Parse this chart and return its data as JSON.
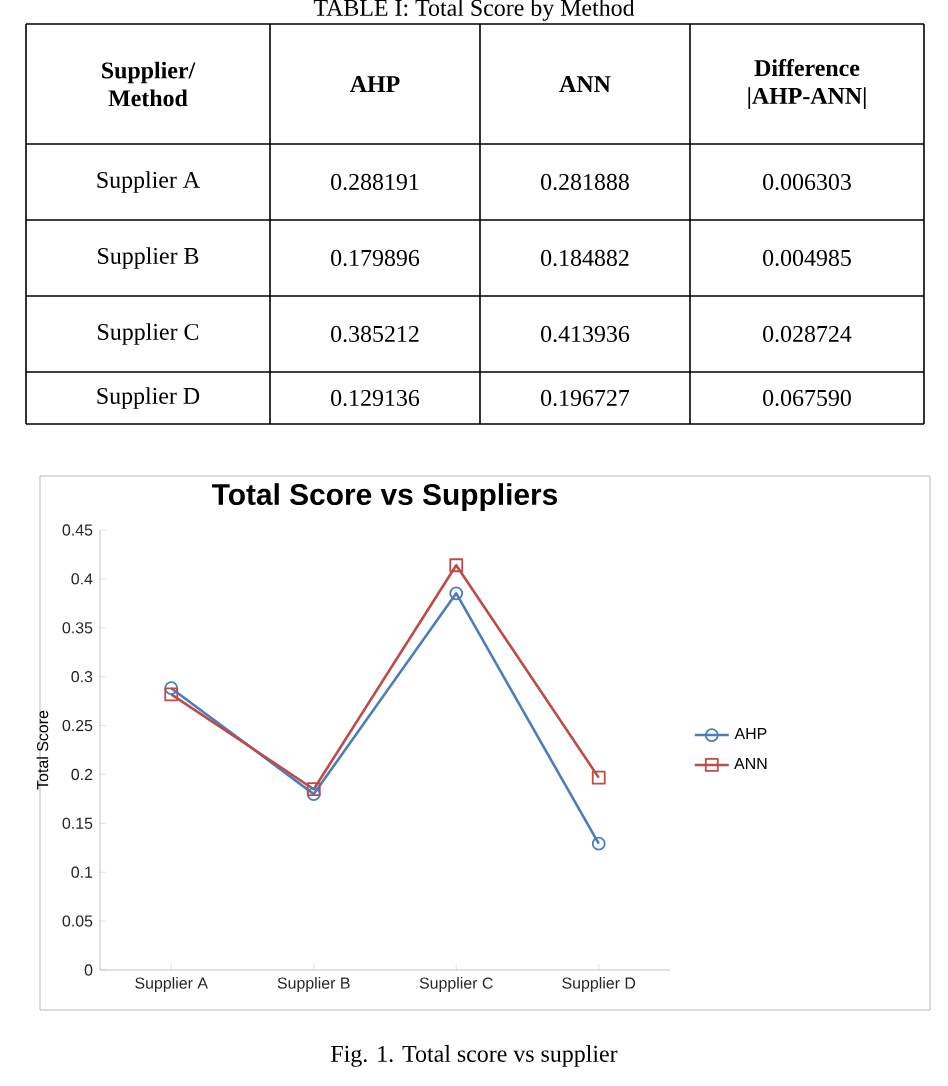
{
  "chart_data": {
    "type": "line",
    "title": "Total Score vs Suppliers",
    "ylabel": "Total Score",
    "categories": [
      "Supplier A",
      "Supplier B",
      "Supplier C",
      "Supplier D"
    ],
    "series": [
      {
        "name": "AHP",
        "color": "#4a7ebb",
        "marker": "circle",
        "values": [
          0.288191,
          0.179896,
          0.385212,
          0.129136
        ]
      },
      {
        "name": "ANN",
        "color": "#be4b48",
        "marker": "square",
        "values": [
          0.281888,
          0.184882,
          0.413936,
          0.196727
        ]
      }
    ],
    "ylim": [
      0,
      0.45
    ],
    "yticks": [
      0,
      0.05,
      0.1,
      0.15,
      0.2,
      0.25,
      0.3,
      0.35,
      0.4,
      0.45
    ],
    "legend": "right",
    "grid": false,
    "annotations": [
      "TABLE I: Total Score by Method",
      "Supplier/ Method",
      "Difference |AHP-ANN|",
      "0.288191",
      "0.281888",
      "0.006303",
      "0.179896",
      "0.184882",
      "0.004985",
      "0.385212",
      "0.413936",
      "0.028724",
      "0.129136",
      "0.196727",
      "0.067590",
      "Fig. 1. Total score vs supplier"
    ]
  }
}
